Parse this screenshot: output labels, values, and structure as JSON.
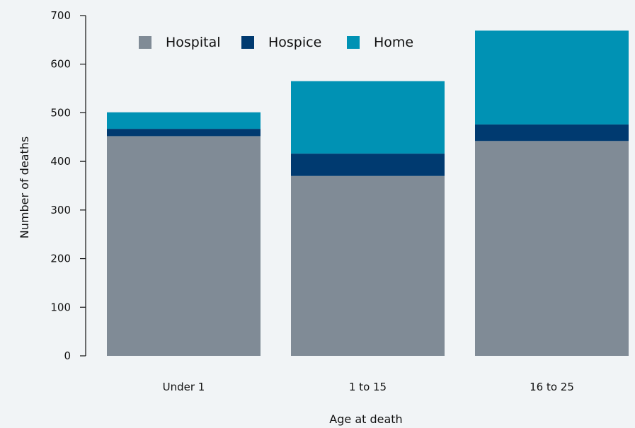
{
  "chart_data": {
    "type": "bar",
    "stacked": true,
    "title": "",
    "xlabel": "Age at death",
    "ylabel": "Number of deaths",
    "categories": [
      "Under 1",
      "1 to 15",
      "16 to 25"
    ],
    "ylim": [
      0,
      700
    ],
    "yticks": [
      0,
      100,
      200,
      300,
      400,
      500,
      600,
      700
    ],
    "grid": false,
    "legend_position": "top",
    "series": [
      {
        "name": "Hospital",
        "color": "#808b96",
        "values": [
          452,
          370,
          442
        ]
      },
      {
        "name": "Hospice",
        "color": "#003a70",
        "values": [
          15,
          46,
          34
        ]
      },
      {
        "name": "Home",
        "color": "#0092b4",
        "values": [
          34,
          149,
          193
        ]
      }
    ]
  }
}
